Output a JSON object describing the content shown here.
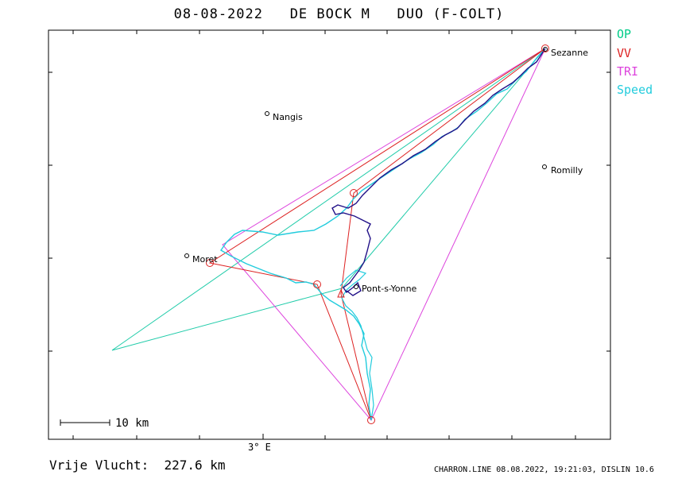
{
  "header": {
    "title": "08-08-2022   DE BOCK M   DUO (F-COLT)"
  },
  "legend": [
    {
      "label": "OP",
      "color": "#00cc88"
    },
    {
      "label": "VV",
      "color": "#dd2222"
    },
    {
      "label": "TRI",
      "color": "#dd44dd"
    },
    {
      "label": "Speed",
      "color": "#22ccdd"
    }
  ],
  "map": {
    "axis_label": "3° E",
    "scale_label": "10 km",
    "towns": [
      {
        "name": "Sezanne"
      },
      {
        "name": "Nangis"
      },
      {
        "name": "Romilly"
      },
      {
        "name": "Moret"
      },
      {
        "name": "Pont-s-Yonne"
      }
    ]
  },
  "footer": {
    "distance": "Vrije Vlucht:  227.6 km",
    "credit": "CHARRON.LINE 08.08.2022, 19:21:03, DISLIN 10.6"
  }
}
